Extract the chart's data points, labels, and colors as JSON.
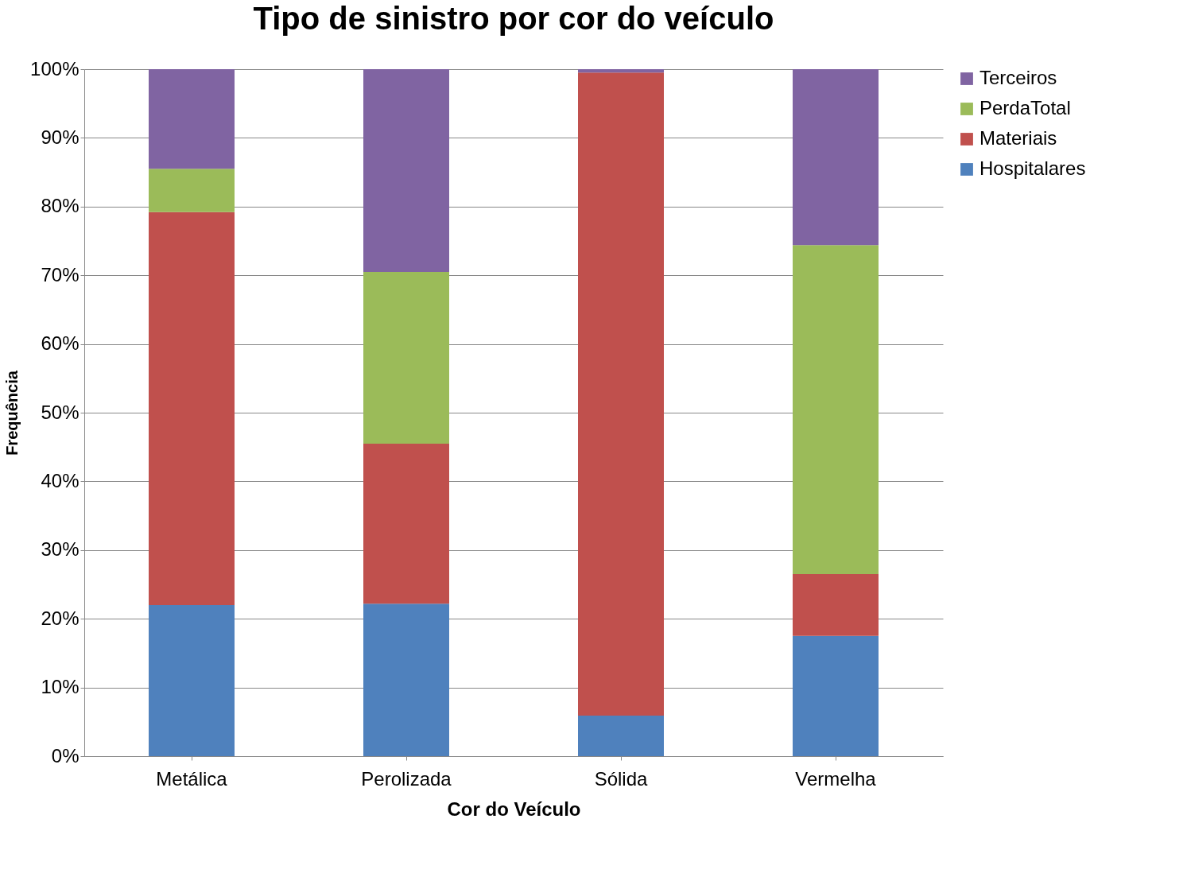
{
  "chart_data": {
    "type": "bar",
    "stacked": true,
    "title": "Tipo de sinistro por cor do veículo",
    "xlabel": "Cor do Veículo",
    "ylabel": "Frequência",
    "categories": [
      "Metálica",
      "Perolizada",
      "Sólida",
      "Vermelha"
    ],
    "series": [
      {
        "name": "Hospitalares",
        "color": "#4f81bd",
        "values": [
          22.0,
          22.2,
          5.9,
          17.5
        ]
      },
      {
        "name": "Materiais",
        "color": "#c0504d",
        "values": [
          57.2,
          23.3,
          93.6,
          9.0
        ]
      },
      {
        "name": "PerdaTotal",
        "color": "#9bbb59",
        "values": [
          6.3,
          25.0,
          0,
          47.9
        ]
      },
      {
        "name": "Terceiros",
        "color": "#8064a2",
        "values": [
          14.5,
          29.5,
          0.5,
          25.6
        ]
      }
    ],
    "ylim": [
      0,
      100
    ],
    "yticks": [
      {
        "value": 0,
        "label": "0%"
      },
      {
        "value": 10,
        "label": "10%"
      },
      {
        "value": 20,
        "label": "20%"
      },
      {
        "value": 30,
        "label": "30%"
      },
      {
        "value": 40,
        "label": "40%"
      },
      {
        "value": 50,
        "label": "50%"
      },
      {
        "value": 60,
        "label": "60%"
      },
      {
        "value": 70,
        "label": "70%"
      },
      {
        "value": 80,
        "label": "80%"
      },
      {
        "value": 90,
        "label": "90%"
      },
      {
        "value": 100,
        "label": "100%"
      }
    ],
    "grid": "y",
    "legend": "right"
  }
}
